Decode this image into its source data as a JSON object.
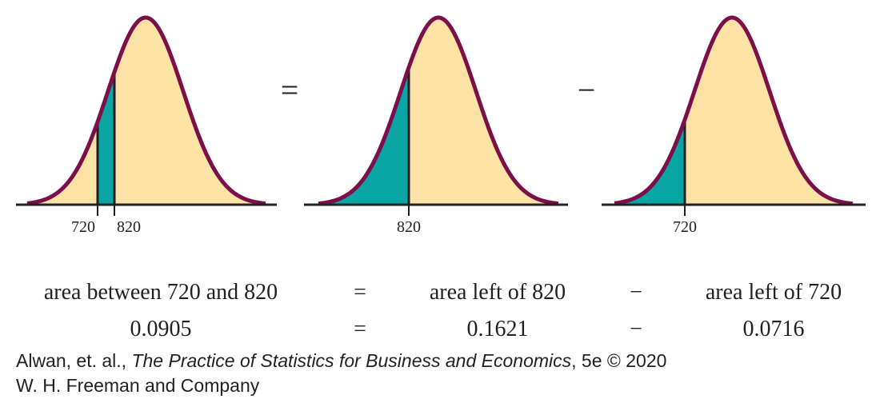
{
  "panels": [
    {
      "labels": [
        "720",
        "820"
      ]
    },
    {
      "labels": [
        "820"
      ]
    },
    {
      "labels": [
        "720"
      ]
    }
  ],
  "operators": [
    "=",
    "−"
  ],
  "equation_text": {
    "left": "area between 720 and 820",
    "eq": "=",
    "middle": "area left of 820",
    "minus": "−",
    "right": "area left of 720"
  },
  "equation_values": {
    "left": "0.0905",
    "eq": "=",
    "middle": "0.1621",
    "minus": "−",
    "right": "0.0716"
  },
  "credit": {
    "authors": "Alwan, et. al., ",
    "title": "The Practice of Statistics for Business and Economics",
    "edition": ", 5e © 2020",
    "publisher": "W. H. Freeman and Company"
  },
  "colors": {
    "curve": "#7b0f4a",
    "fill": "#fde2a6",
    "shade": "#0aa5a5",
    "axis": "#231f20"
  }
}
